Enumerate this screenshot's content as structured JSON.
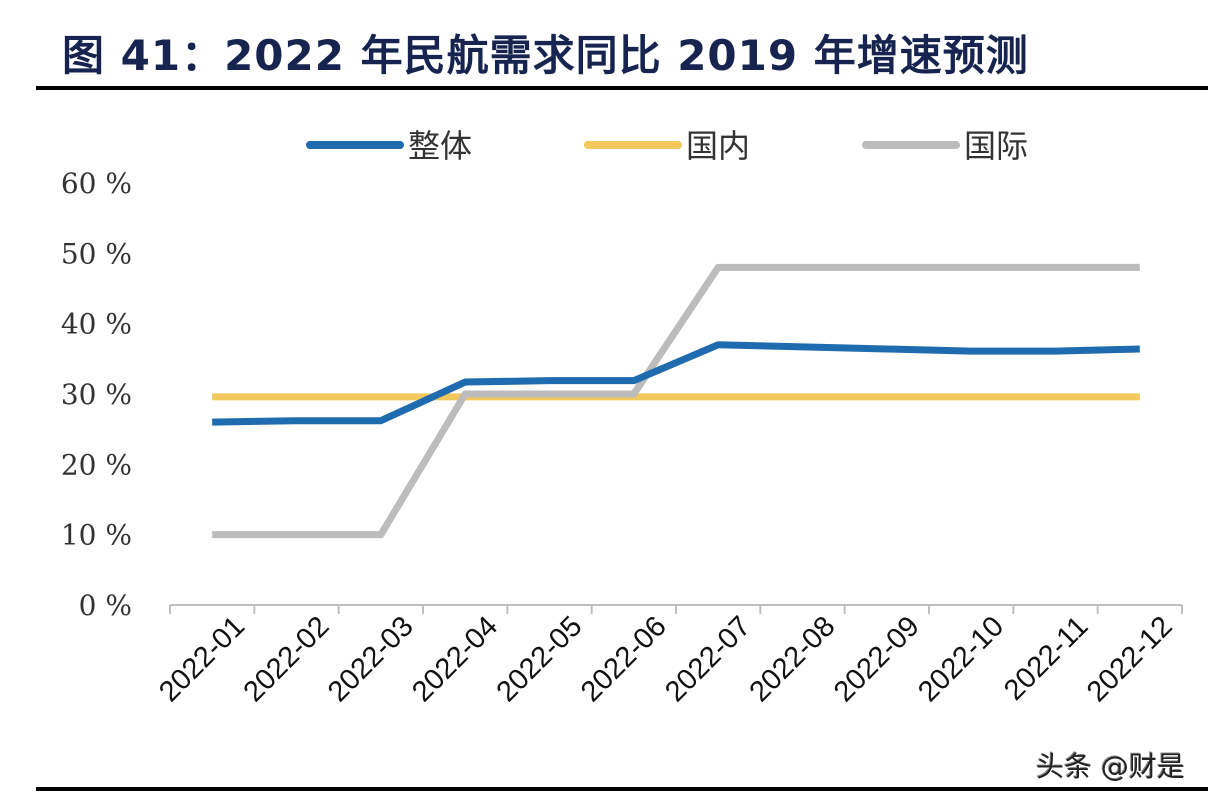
{
  "title": "图 41：2022 年民航需求同比 2019 年增速预测",
  "watermark": "头条 @财是",
  "chart_data": {
    "type": "line",
    "title": "图 41：2022 年民航需求同比 2019 年增速预测",
    "categories": [
      "2022-01",
      "2022-02",
      "2022-03",
      "2022-04",
      "2022-05",
      "2022-06",
      "2022-07",
      "2022-08",
      "2022-09",
      "2022-10",
      "2022-11",
      "2022-12"
    ],
    "ylim": [
      0,
      60
    ],
    "yticks": [
      0,
      10,
      20,
      30,
      40,
      50,
      60
    ],
    "ytick_labels": [
      "0 %",
      "10 %",
      "20 %",
      "30 %",
      "40 %",
      "50 %",
      "60 %"
    ],
    "grid": false,
    "legend_placement": "top",
    "series": [
      {
        "name": "整体",
        "color": "#1f6bb0",
        "values": [
          26.0,
          26.2,
          26.2,
          31.7,
          31.9,
          31.9,
          37.0,
          36.7,
          36.4,
          36.1,
          36.1,
          36.4
        ]
      },
      {
        "name": "国内",
        "color": "#f2c75c",
        "values": [
          29.6,
          29.6,
          29.6,
          29.6,
          29.6,
          29.6,
          29.6,
          29.6,
          29.6,
          29.6,
          29.6,
          29.6
        ]
      },
      {
        "name": "国际",
        "color": "#bcbcbc",
        "values": [
          10,
          10,
          10,
          30,
          30,
          30,
          48,
          48,
          48,
          48,
          48,
          48
        ]
      }
    ]
  }
}
